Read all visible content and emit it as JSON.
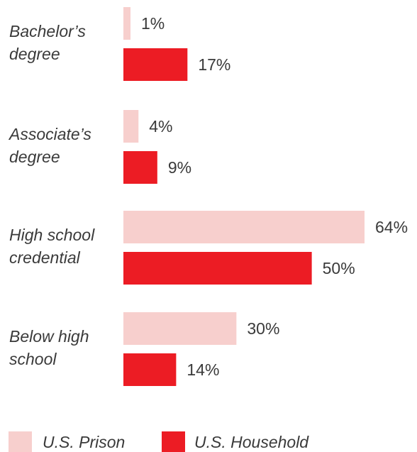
{
  "chart_data": {
    "type": "bar",
    "orientation": "horizontal",
    "categories": [
      [
        "Bachelor’s",
        "degree"
      ],
      [
        "Associate’s",
        "degree"
      ],
      [
        "High school",
        "credential"
      ],
      [
        "Below high",
        "school"
      ]
    ],
    "series": [
      {
        "name": "U.S. Prison",
        "values": [
          1,
          4,
          64,
          30
        ],
        "color": "#f7cfcd"
      },
      {
        "name": "U.S. Household",
        "values": [
          17,
          9,
          50,
          14
        ],
        "color": "#ec1c24"
      }
    ],
    "value_suffix": "%",
    "xlim": [
      0,
      64
    ],
    "grid": false,
    "legend_position": "bottom-left",
    "title": "",
    "xlabel": "",
    "ylabel": ""
  }
}
